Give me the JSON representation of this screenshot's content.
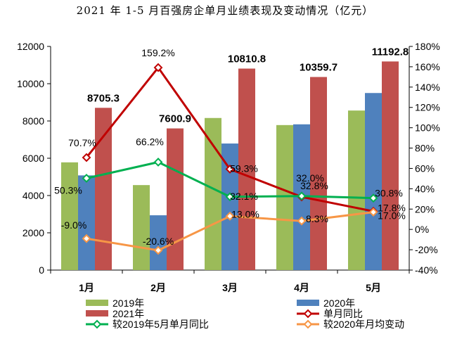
{
  "chart_data": {
    "type": "bar",
    "title": "2021 年 1-5 月百强房企单月业绩表现及变动情况（亿元）",
    "categories": [
      "1月",
      "2月",
      "3月",
      "4月",
      "5月"
    ],
    "ylim": [
      0,
      12000
    ],
    "y_ticks": [
      "0",
      "2000",
      "4000",
      "6000",
      "8000",
      "10000",
      "12000"
    ],
    "y2lim": [
      -40,
      180
    ],
    "y2_ticks": [
      "-40%",
      "-20%",
      "0%",
      "20%",
      "40%",
      "60%",
      "80%",
      "100%",
      "120%",
      "140%",
      "160%",
      "180%"
    ],
    "grid": false,
    "legend_position": "bottom",
    "series": [
      {
        "name": "2019年",
        "type": "bar",
        "axis": "left",
        "color": "#9bbb59",
        "values": [
          5780,
          4560,
          8160,
          7780,
          8560
        ]
      },
      {
        "name": "2020年",
        "type": "bar",
        "axis": "left",
        "color": "#4f81bd",
        "values": [
          5080,
          2940,
          6790,
          7820,
          9500
        ]
      },
      {
        "name": "2021年",
        "type": "bar",
        "axis": "left",
        "color": "#c0504d",
        "values": [
          8705.3,
          7600.9,
          10810.8,
          10359.7,
          11192.8
        ],
        "labels": [
          "8705.3",
          "7600.9",
          "10810.8",
          "10359.7",
          "11192.8"
        ]
      },
      {
        "name": "单月同比",
        "type": "line",
        "axis": "right",
        "color": "#c00000",
        "marker": "diamond",
        "values": [
          70.7,
          159.2,
          59.3,
          32.0,
          17.8
        ],
        "labels": [
          "70.7%",
          "159.2%",
          "59.3%",
          "32.0%",
          "17.8%"
        ]
      },
      {
        "name": "较2019年5月单月同比",
        "type": "line",
        "axis": "right",
        "color": "#00b050",
        "marker": "diamond",
        "values": [
          50.3,
          66.2,
          32.1,
          32.8,
          30.8
        ],
        "labels": [
          "50.3%",
          "66.2%",
          "32.1%",
          "32.8%",
          "30.8%"
        ]
      },
      {
        "name": "较2020年月均变动",
        "type": "line",
        "axis": "right",
        "color": "#f79646",
        "marker": "diamond",
        "values": [
          -9.0,
          -20.6,
          13.0,
          8.3,
          17.0
        ],
        "labels": [
          "-9.0%",
          "-20.6%",
          "13.0%",
          "8.3%",
          "17.0%"
        ]
      }
    ]
  }
}
